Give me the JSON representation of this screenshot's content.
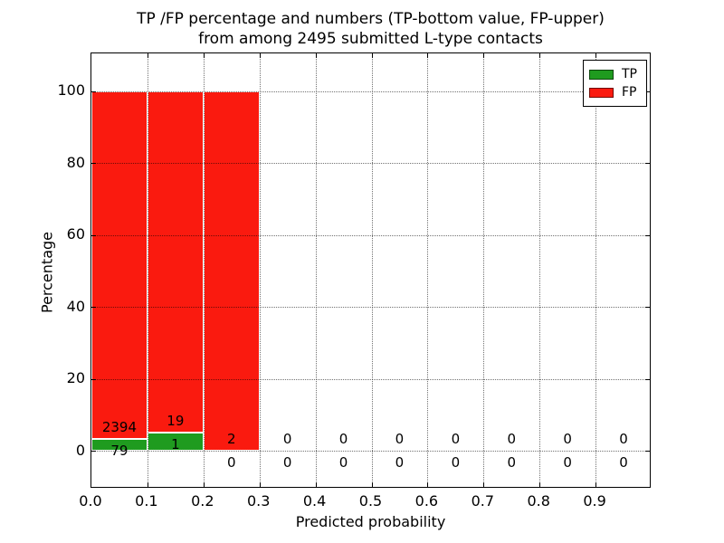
{
  "title": {
    "line1": "TP /FP percentage and numbers (TP-bottom value, FP-upper)",
    "line2": "from among 2495 submitted L-type contacts"
  },
  "axes": {
    "x_label": "Predicted probability",
    "y_label": "Percentage",
    "x_tick_labels": [
      "0.0",
      "0.1",
      "0.2",
      "0.3",
      "0.4",
      "0.5",
      "0.6",
      "0.7",
      "0.8",
      "0.9"
    ],
    "y_tick_values": [
      0,
      20,
      40,
      60,
      80,
      100
    ],
    "xlim": [
      0.0,
      1.0
    ],
    "ylim": [
      -11,
      110
    ],
    "grid_style": "dotted"
  },
  "legend": {
    "position": "upper-right",
    "items": [
      {
        "label": "TP",
        "color": "#1f9b1f"
      },
      {
        "label": "FP",
        "color": "#fa1a0f"
      }
    ]
  },
  "chart_data": {
    "type": "bar",
    "stacked": true,
    "normalization": "per-bin percentage: TP% + FP% = 100 for non-empty bins",
    "bin_edges": [
      0.0,
      0.1,
      0.2,
      0.3,
      0.4,
      0.5,
      0.6,
      0.7,
      0.8,
      0.9,
      1.0
    ],
    "series": [
      {
        "name": "TP",
        "color": "#1f9b1f",
        "counts": [
          79,
          1,
          0,
          0,
          0,
          0,
          0,
          0,
          0,
          0
        ],
        "label_position": "bottom"
      },
      {
        "name": "FP",
        "color": "#fa1a0f",
        "counts": [
          2394,
          19,
          2,
          0,
          0,
          0,
          0,
          0,
          0,
          0
        ],
        "label_position": "upper"
      }
    ],
    "total_contacts": 2495,
    "title": "TP /FP percentage and numbers (TP-bottom value, FP-upper) from among 2495 submitted L-type contacts",
    "xlabel": "Predicted probability",
    "ylabel": "Percentage",
    "grid": true,
    "legend_position": "upper right"
  },
  "colors": {
    "tp": "#1f9b1f",
    "fp": "#fa1a0f",
    "grid": "#000000",
    "text": "#000000",
    "background": "#ffffff"
  }
}
